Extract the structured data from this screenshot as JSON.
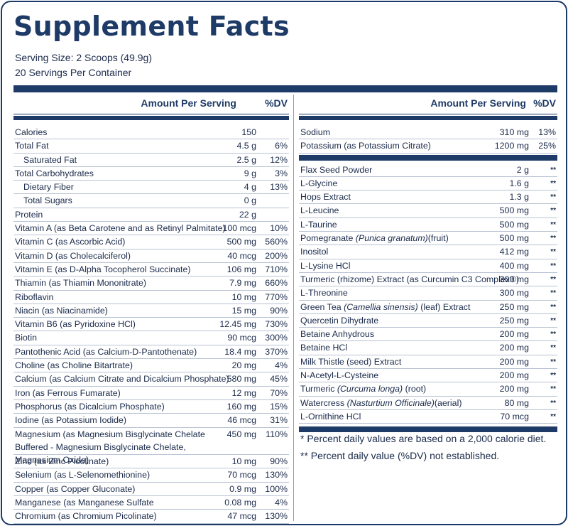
{
  "title": "Supplement Facts",
  "serving_size": "Serving Size: 2 Scoops (49.9g)",
  "servings_per_container": "20 Servings Per Container",
  "header": {
    "amount": "Amount Per Serving",
    "dv": "%DV"
  },
  "left_rows": [
    {
      "name": "Calories",
      "amount": "150",
      "dv": ""
    },
    {
      "name": "Total Fat",
      "amount": "4.5 g",
      "dv": "6%"
    },
    {
      "name": "Saturated Fat",
      "amount": "2.5 g",
      "dv": "12%",
      "indent": true
    },
    {
      "name": "Total Carbohydrates",
      "amount": "9 g",
      "dv": "3%"
    },
    {
      "name": "Dietary Fiber",
      "amount": "4 g",
      "dv": "13%",
      "indent": true
    },
    {
      "name": "Total Sugars",
      "amount": "0 g",
      "dv": "",
      "indent": true
    },
    {
      "name": "Protein",
      "amount": "22 g",
      "dv": ""
    },
    {
      "name": "Vitamin A (as Beta Carotene and as Retinyl Palmitate)",
      "amount": "100 mcg",
      "dv": "10%"
    },
    {
      "name": "Vitamin C (as Ascorbic Acid)",
      "amount": "500 mg",
      "dv": "560%"
    },
    {
      "name": "Vitamin D (as Cholecalciferol)",
      "amount": "40 mcg",
      "dv": "200%"
    },
    {
      "name": "Vitamin E (as D-Alpha Tocopherol Succinate)",
      "amount": "106 mg",
      "dv": "710%"
    },
    {
      "name": "Thiamin (as Thiamin Mononitrate)",
      "amount": "7.9 mg",
      "dv": "660%"
    },
    {
      "name": "Riboflavin",
      "amount": "10 mg",
      "dv": "770%"
    },
    {
      "name": "Niacin (as Niacinamide)",
      "amount": "15 mg",
      "dv": "90%"
    },
    {
      "name": "Vitamin B6 (as Pyridoxine HCl)",
      "amount": "12.45 mg",
      "dv": "730%"
    },
    {
      "name": "Biotin",
      "amount": "90 mcg",
      "dv": "300%"
    },
    {
      "name": "Pantothenic Acid (as Calcium-D-Pantothenate)",
      "amount": "18.4 mg",
      "dv": "370%"
    },
    {
      "name": "Choline (as Choline Bitartrate)",
      "amount": "20 mg",
      "dv": "4%"
    },
    {
      "name": "Calcium (as Calcium Citrate and Dicalcium Phosphate)",
      "amount": "580 mg",
      "dv": "45%"
    },
    {
      "name": "Iron (as Ferrous Fumarate)",
      "amount": "12 mg",
      "dv": "70%"
    },
    {
      "name": "Phosphorus (as Dicalcium Phosphate)",
      "amount": "160 mg",
      "dv": "15%"
    },
    {
      "name": "Iodine (as Potassium Iodide)",
      "amount": "46 mcg",
      "dv": "31%"
    },
    {
      "name": "Magnesium (as Magnesium Bisglycinate Chelate Buffered - Magnesium Bisglycinate Chelate, Magnesium Oxide)",
      "amount": "450 mg",
      "dv": "110%",
      "tall": true
    },
    {
      "name": "Zinc (as Zinc Picolinate)",
      "amount": "10 mg",
      "dv": "90%"
    },
    {
      "name": "Selenium (as L-Selenomethionine)",
      "amount": "70 mcg",
      "dv": "130%"
    },
    {
      "name": "Copper (as Copper Gluconate)",
      "amount": "0.9 mg",
      "dv": "100%"
    },
    {
      "name": "Manganese (as Manganese Sulfate",
      "amount": "0.08 mg",
      "dv": "4%"
    },
    {
      "name": "Chromium (as Chromium Picolinate)",
      "amount": "47 mcg",
      "dv": "130%"
    }
  ],
  "right_top_rows": [
    {
      "name": "Sodium",
      "amount": "310 mg",
      "dv": "13%"
    },
    {
      "name": "Potassium (as Potassium Citrate)",
      "amount": "1200 mg",
      "dv": "25%"
    }
  ],
  "right_rows": [
    {
      "name": "Flax Seed Powder",
      "amount": "2 g",
      "dv": "**"
    },
    {
      "name": "L-Glycine",
      "amount": "1.6 g",
      "dv": "**"
    },
    {
      "name": "Hops Extract",
      "amount": "1.3 g",
      "dv": "**"
    },
    {
      "name": "L-Leucine",
      "amount": "500 mg",
      "dv": "**"
    },
    {
      "name": "L-Taurine",
      "amount": "500 mg",
      "dv": "**"
    },
    {
      "name": "Pomegranate ",
      "italic": "(Punica granatum)",
      "suffix": "(fruit)",
      "amount": "500 mg",
      "dv": "**"
    },
    {
      "name": "Inositol",
      "amount": "412 mg",
      "dv": "**"
    },
    {
      "name": "L-Lysine HCl",
      "amount": "400 mg",
      "dv": "**"
    },
    {
      "name": "Turmeric (rhizome) Extract (as Curcumin C3 Complex®)",
      "amount": "300 mg",
      "dv": "**"
    },
    {
      "name": "L-Threonine",
      "amount": "300 mg",
      "dv": "**"
    },
    {
      "name": "Green Tea ",
      "italic": "(Camellia sinensis)",
      "suffix": " (leaf) Extract",
      "amount": "250 mg",
      "dv": "**"
    },
    {
      "name": "Quercetin Dihydrate",
      "amount": "250 mg",
      "dv": "**"
    },
    {
      "name": "Betaine Anhydrous",
      "amount": "200 mg",
      "dv": "**"
    },
    {
      "name": "Betaine HCl",
      "amount": "200 mg",
      "dv": "**"
    },
    {
      "name": "Milk Thistle (seed) Extract",
      "amount": "200 mg",
      "dv": "**"
    },
    {
      "name": "N-Acetyl-L-Cysteine",
      "amount": "200 mg",
      "dv": "**"
    },
    {
      "name": "Turmeric ",
      "italic": "(Curcuma longa)",
      "suffix": " (root)",
      "amount": "200 mg",
      "dv": "**"
    },
    {
      "name": "Watercress ",
      "italic": "(Nasturtium Officinale)",
      "suffix": "(aerial)",
      "amount": "80 mg",
      "dv": "**"
    },
    {
      "name": "L-Ornithine HCl",
      "amount": "70 mcg",
      "dv": "**"
    }
  ],
  "footnote_1": "* Percent daily values are based on a 2,000 calorie diet.",
  "footnote_2": "** Percent daily value (%DV) not established.",
  "colors": {
    "navy": "#1e3a66",
    "text": "#1a2a4a",
    "rule": "#b8c2d3"
  }
}
